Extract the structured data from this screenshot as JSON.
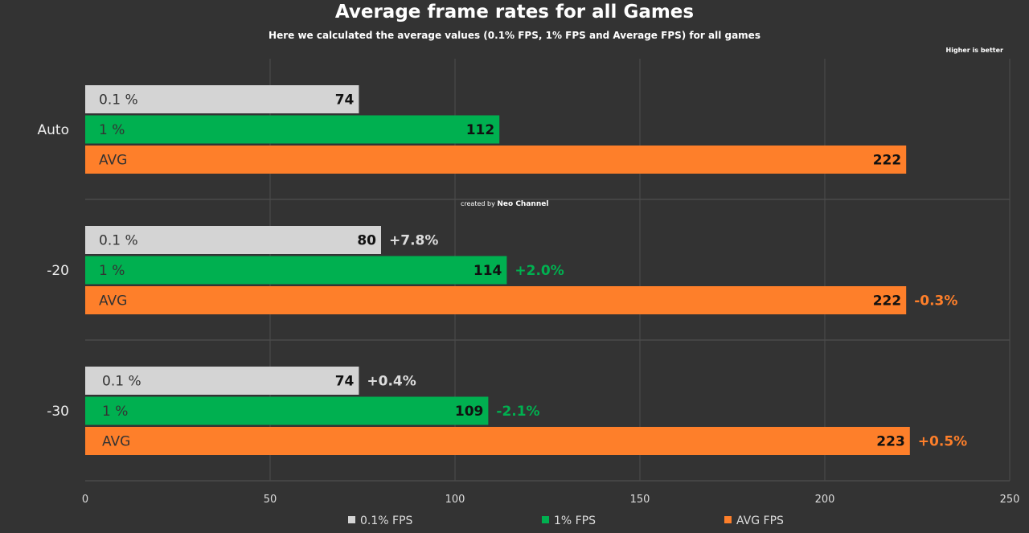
{
  "chart_data": {
    "type": "bar",
    "orientation": "horizontal",
    "title": "Average frame rates for all Games",
    "subtitle": "Here we calculated the average values (0.1% FPS, 1% FPS and Average FPS) for all games",
    "note": "Higher is better",
    "credit_prefix": "created by",
    "credit_name": "Neo Channel",
    "categories": [
      "Auto",
      "-20",
      "-30"
    ],
    "bar_labels": [
      "0.1 %",
      "1 %",
      "AVG"
    ],
    "series": [
      {
        "name": "0.1% FPS",
        "color": "#d4d4d4",
        "change_color": "#dddddd",
        "values": [
          74,
          80,
          74
        ],
        "changes": [
          "",
          "+7.8%",
          "+0.4%"
        ]
      },
      {
        "name": "1% FPS",
        "color": "#00b050",
        "change_color": "#00b050",
        "values": [
          112,
          114,
          109
        ],
        "changes": [
          "",
          "+2.0%",
          "-2.1%"
        ]
      },
      {
        "name": "AVG FPS",
        "color": "#fe7f2a",
        "change_color": "#fe7f2a",
        "values": [
          222,
          222,
          223
        ],
        "changes": [
          "",
          "-0.3%",
          "+0.5%"
        ]
      }
    ],
    "xlim": [
      0,
      250
    ],
    "xticks": [
      0,
      50,
      100,
      150,
      200,
      250
    ],
    "grid": true,
    "legend_position": "bottom"
  }
}
